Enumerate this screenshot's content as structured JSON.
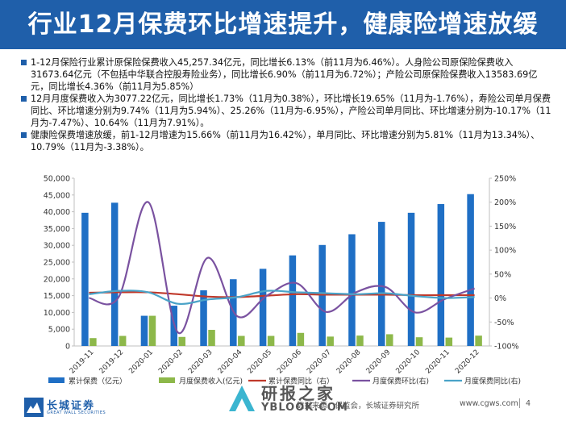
{
  "header": {
    "title": "行业12月保费环比增速提升，健康险增速放缓"
  },
  "bullets": [
    "1-12月保险行业累计原保险保费收入45,257.34亿元，同比增长6.13%（前11月为6.46%）。人身险公司原保险保费收入31673.64亿元（不包括中华联合控股寿险业务），同比增长6.90%（前11月为6.72%）；产险公司原保险保费收入13583.69亿元，同比增长4.36%（前11月为5.85%）",
    "12月月度保费收入为3077.22亿元，同比增长1.73%（11月为0.38%），环比增长19.65%（11月为-1.76%），寿险公司单月保费同比、环比增速分别为9.74%（11月为5.94%）、25.26%（11月为-6.95%），产险公司单月同比、环比增速分别为-10.17%（11月为-7.47%）、10.64%（11月为7.91%）。",
    "健康险保费增速放缓，前1-12月增速为15.66%（前11月为16.42%），单月同比、环比增速分别为5.81%（11月为13.34%）、10.79%（11月为-3.38%）。"
  ],
  "chart_data": {
    "type": "bar",
    "categories": [
      "2019-11",
      "2019-12",
      "2020-01",
      "2020-02",
      "2020-03",
      "2020-04",
      "2020-05",
      "2020-06",
      "2020-07",
      "2020-08",
      "2020-09",
      "2020-10",
      "2020-11",
      "2020-12"
    ],
    "y_left": {
      "min": 0,
      "max": 50000,
      "ticks": [
        "0",
        "5,000",
        "10,000",
        "15,000",
        "20,000",
        "25,000",
        "30,000",
        "35,000",
        "40,000",
        "45,000",
        "50,000"
      ]
    },
    "y_right": {
      "min": -100,
      "max": 250,
      "ticks": [
        "-100%",
        "-50%",
        "0%",
        "50%",
        "100%",
        "150%",
        "200%",
        "250%"
      ]
    },
    "series": [
      {
        "name": "累计保费（亿元）",
        "kind": "bar",
        "axis": "left",
        "color": "#1f6fc5",
        "values": [
          39700,
          42700,
          9000,
          12000,
          16600,
          19900,
          23000,
          27000,
          30100,
          33300,
          37000,
          39700,
          42300,
          45257
        ]
      },
      {
        "name": "月度保费收入(亿元)",
        "kind": "bar",
        "axis": "left",
        "color": "#8db84a",
        "values": [
          2350,
          3000,
          9000,
          2700,
          4800,
          3000,
          3000,
          3900,
          2800,
          3100,
          3500,
          2600,
          2500,
          3077
        ]
      },
      {
        "name": "累计保费同比（右）",
        "kind": "line",
        "axis": "right",
        "color": "#c0392b",
        "values": [
          11,
          12,
          12,
          8,
          3,
          2,
          5,
          8,
          7,
          7,
          7,
          6,
          6,
          6
        ]
      },
      {
        "name": "月度保费环比(右)",
        "kind": "line",
        "axis": "right",
        "color": "#7a52a0",
        "values": [
          0,
          2,
          200,
          -72,
          84,
          -38,
          5,
          31,
          -29,
          12,
          23,
          -30,
          -2,
          20
        ]
      },
      {
        "name": "月度保费同比(右)",
        "kind": "line",
        "axis": "right",
        "color": "#4aa3c8",
        "values": [
          8,
          15,
          12,
          -12,
          -3,
          2,
          15,
          12,
          10,
          8,
          10,
          4,
          0,
          2
        ]
      }
    ]
  },
  "footer": {
    "logo_text": "长城证券",
    "logo_sub": "GREAT WALL SECURITIES",
    "source": "数据来源：保监会，长城证券研究所",
    "website": "www.cgws.com",
    "page": "4"
  },
  "watermark": {
    "line1": "研报之家",
    "line2": "YBLOOK.COM"
  }
}
